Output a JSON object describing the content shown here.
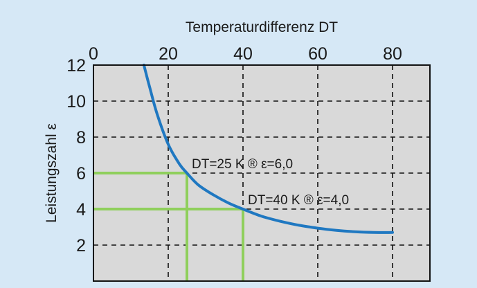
{
  "chart_data": {
    "type": "line",
    "xlabel": "Temperaturdifferenz DT",
    "ylabel": "Leistungszahl ε",
    "xlim": [
      0,
      90
    ],
    "ylim": [
      0,
      12
    ],
    "x_axis_position": "top",
    "x_ticks": [
      "0",
      "20",
      "40",
      "60",
      "80"
    ],
    "y_ticks": [
      "2",
      "4",
      "6",
      "8",
      "10",
      "12"
    ],
    "grid": true,
    "grid_style": "dashed",
    "background": "#d6e8f6",
    "plot_background": "#d9d9d9",
    "curve_color": "#1f78c1",
    "highlight_color": "#8fcf5c",
    "series": [
      {
        "x": [
          13.5,
          15,
          17,
          20,
          23,
          25,
          28,
          32,
          36,
          40,
          45,
          50,
          55,
          60,
          65,
          70,
          75,
          80
        ],
        "y": [
          12,
          10.8,
          9.3,
          7.6,
          6.5,
          6.0,
          5.35,
          4.8,
          4.35,
          4.0,
          3.6,
          3.32,
          3.1,
          2.94,
          2.82,
          2.74,
          2.7,
          2.7
        ]
      }
    ],
    "highlights": [
      {
        "x": 25,
        "y": 6.0
      },
      {
        "x": 40,
        "y": 4.0
      }
    ],
    "annotations": [
      {
        "text": "DT=25 K ® ε=6,0",
        "x": 25,
        "y": 6.0
      },
      {
        "text": "DT=40 K ® ε=4,0",
        "x": 40,
        "y": 4.0
      }
    ]
  }
}
